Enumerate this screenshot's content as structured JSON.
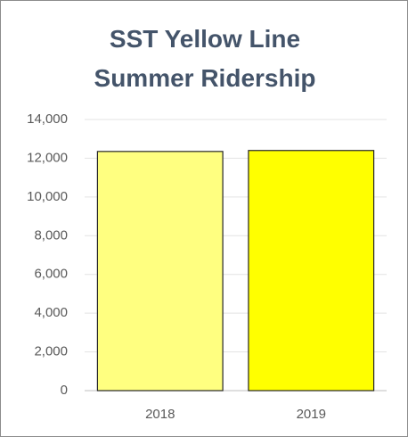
{
  "chart_data": {
    "type": "bar",
    "title": "SST Yellow Line Summer Ridership",
    "categories": [
      "2018",
      "2019"
    ],
    "values": [
      12350,
      12400
    ],
    "colors": [
      "#ffff80",
      "#ffff00"
    ],
    "ylim": [
      0,
      14000
    ],
    "yticks": [
      0,
      {
        "value": 2000,
        "label": "2,000"
      },
      {
        "value": 4000,
        "label": "4,000"
      },
      {
        "value": 6000,
        "label": "6,000"
      },
      {
        "value": 8000,
        "label": "8,000"
      },
      {
        "value": 10000,
        "label": "10,000"
      },
      {
        "value": 12000,
        "label": "12,000"
      },
      {
        "value": 14000,
        "label": "14,000"
      }
    ],
    "grid": true
  }
}
